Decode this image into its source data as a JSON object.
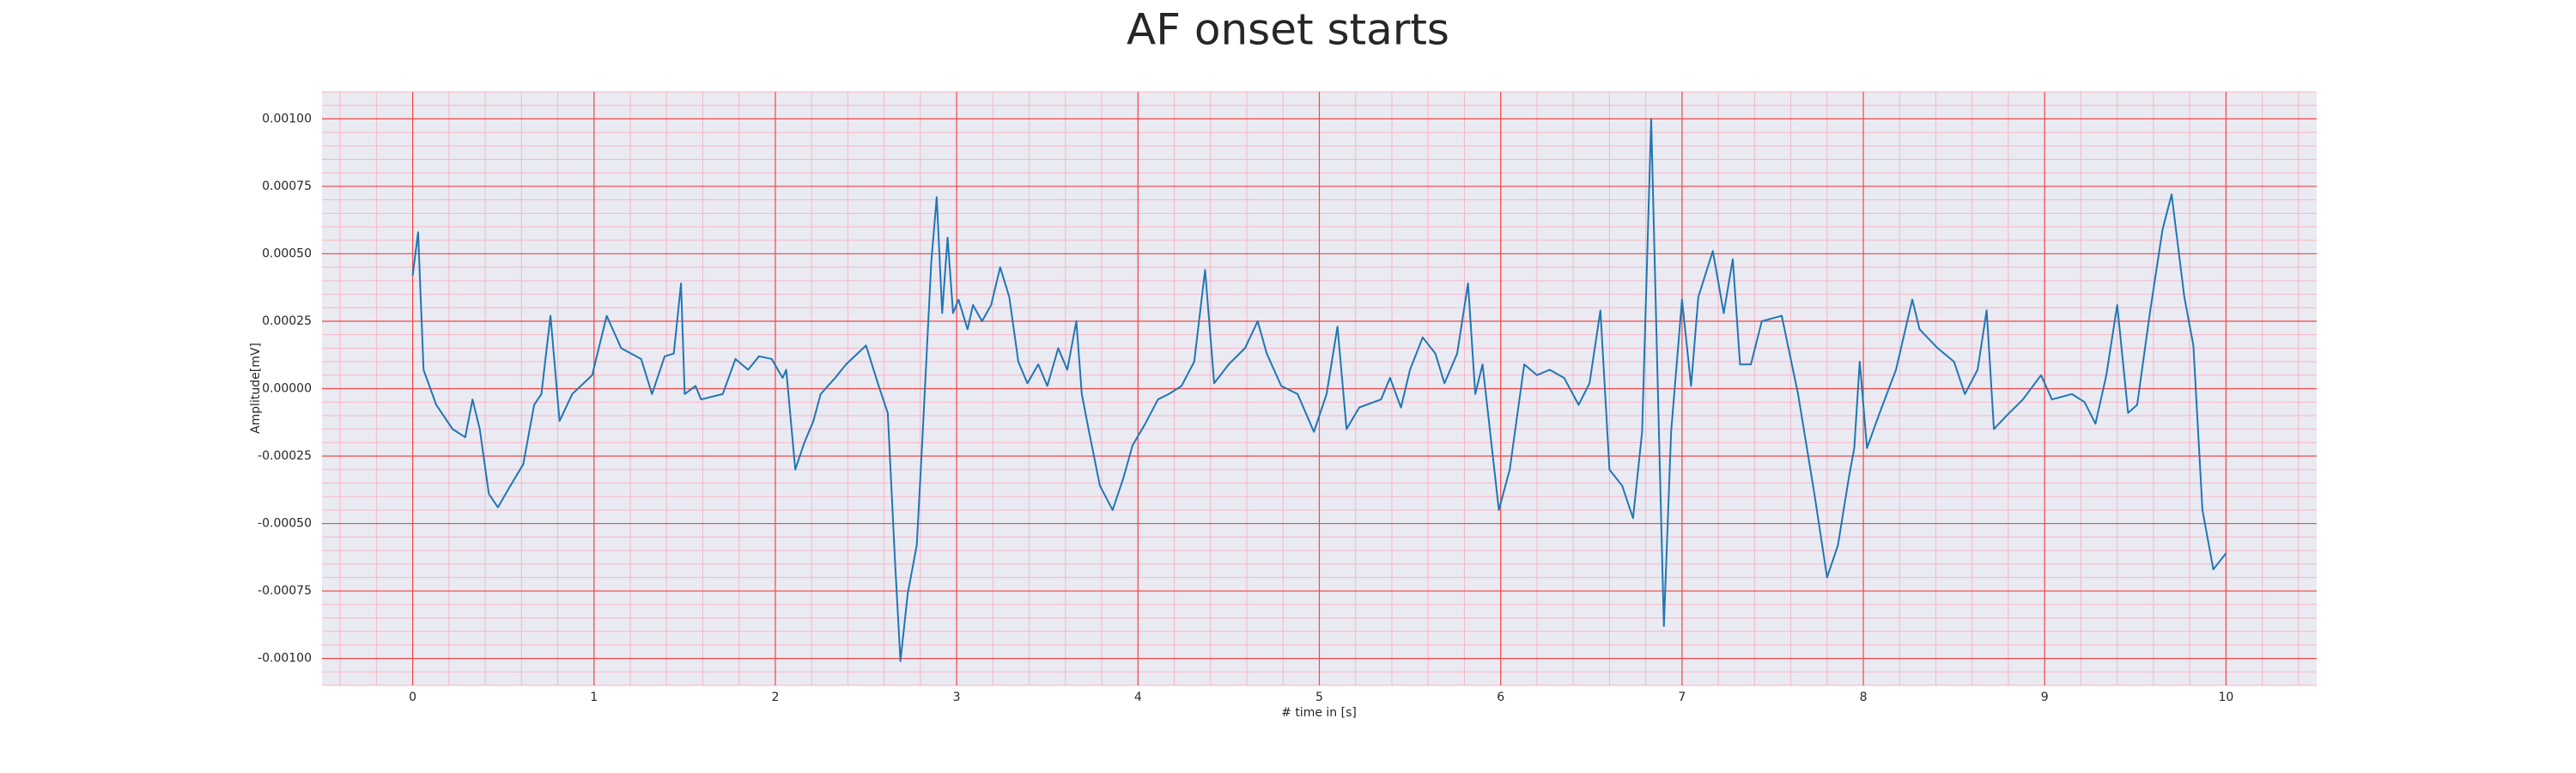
{
  "chart_data": {
    "type": "line",
    "title": "AF onset starts",
    "xlabel": "# time in [s]",
    "ylabel": "Amplitude[mV]",
    "color": "#1f77b4",
    "grid": true,
    "minor_grid": true,
    "xlim": [
      -0.5,
      10.5
    ],
    "xticks": [
      0,
      1,
      2,
      3,
      4,
      5,
      6,
      7,
      8,
      9,
      10
    ],
    "ylim": [
      -0.0011,
      0.0011
    ],
    "yticks": [
      {
        "value": -0.001,
        "label": "-0.00100"
      },
      {
        "value": -0.00075,
        "label": "-0.00075"
      },
      {
        "value": -0.0005,
        "label": "-0.00050"
      },
      {
        "value": -0.00025,
        "label": "-0.00025"
      },
      {
        "value": 0,
        "label": "0.00000"
      },
      {
        "value": 0.00025,
        "label": "0.00025"
      },
      {
        "value": 0.0005,
        "label": "0.00050"
      },
      {
        "value": 0.00075,
        "label": "0.00075"
      },
      {
        "value": 0.001,
        "label": "0.00100"
      }
    ],
    "x": [
      0,
      0.03,
      0.06,
      0.13,
      0.22,
      0.29,
      0.33,
      0.37,
      0.42,
      0.47,
      0.53,
      0.61,
      0.67,
      0.71,
      0.76,
      0.81,
      0.88,
      0.99,
      1.07,
      1.15,
      1.26,
      1.32,
      1.39,
      1.44,
      1.48,
      1.5,
      1.56,
      1.59,
      1.71,
      1.78,
      1.85,
      1.91,
      1.98,
      2.04,
      2.06,
      2.11,
      2.16,
      2.21,
      2.25,
      2.33,
      2.39,
      2.5,
      2.57,
      2.62,
      2.66,
      2.69,
      2.73,
      2.78,
      2.81,
      2.86,
      2.89,
      2.92,
      2.95,
      2.98,
      3.01,
      3.06,
      3.09,
      3.14,
      3.19,
      3.24,
      3.29,
      3.34,
      3.39,
      3.45,
      3.5,
      3.56,
      3.61,
      3.66,
      3.69,
      3.73,
      3.79,
      3.86,
      3.92,
      3.97,
      4.04,
      4.11,
      4.17,
      4.24,
      4.31,
      4.37,
      4.42,
      4.5,
      4.59,
      4.66,
      4.71,
      4.79,
      4.88,
      4.97,
      5.04,
      5.1,
      5.15,
      5.22,
      5.34,
      5.39,
      5.45,
      5.5,
      5.57,
      5.64,
      5.69,
      5.76,
      5.82,
      5.86,
      5.9,
      5.95,
      5.99,
      6.05,
      6.13,
      6.2,
      6.27,
      6.35,
      6.43,
      6.49,
      6.55,
      6.6,
      6.67,
      6.73,
      6.78,
      6.83,
      6.87,
      6.9,
      6.94,
      7.0,
      7.05,
      7.09,
      7.17,
      7.23,
      7.28,
      7.32,
      7.38,
      7.44,
      7.55,
      7.64,
      7.73,
      7.8,
      7.86,
      7.92,
      7.95,
      7.98,
      8.02,
      8.09,
      8.18,
      8.27,
      8.31,
      8.41,
      8.5,
      8.56,
      8.63,
      8.68,
      8.72,
      8.79,
      8.88,
      8.98,
      9.04,
      9.15,
      9.22,
      9.28,
      9.34,
      9.4,
      9.46,
      9.51,
      9.58,
      9.65,
      9.7,
      9.77,
      9.82,
      9.87,
      9.93,
      10.0
    ],
    "values": [
      0.00042,
      0.00058,
      7e-05,
      -6e-05,
      -0.00015,
      -0.00018,
      -4e-05,
      -0.00015,
      -0.00039,
      -0.00044,
      -0.00037,
      -0.00028,
      -6e-05,
      -2e-05,
      0.00027,
      -0.00012,
      -2e-05,
      5e-05,
      0.00027,
      0.00015,
      0.00011,
      -2e-05,
      0.00012,
      0.00013,
      0.00039,
      -2e-05,
      1e-05,
      -4e-05,
      -2e-05,
      0.00011,
      7e-05,
      0.00012,
      0.00011,
      4e-05,
      7e-05,
      -0.0003,
      -0.0002,
      -0.00012,
      -2e-05,
      4e-05,
      9e-05,
      0.00016,
      1e-05,
      -9e-05,
      -0.00064,
      -0.00101,
      -0.00076,
      -0.00058,
      -0.0002,
      0.00047,
      0.00071,
      0.00028,
      0.00056,
      0.00028,
      0.00033,
      0.00022,
      0.00031,
      0.00025,
      0.00031,
      0.00045,
      0.00034,
      0.0001,
      2e-05,
      9e-05,
      1e-05,
      0.00015,
      7e-05,
      0.00025,
      -2e-05,
      -0.00016,
      -0.00036,
      -0.00045,
      -0.00033,
      -0.00021,
      -0.00013,
      -4e-05,
      -2e-05,
      1e-05,
      0.0001,
      0.00044,
      2e-05,
      9e-05,
      0.00015,
      0.00025,
      0.00013,
      1e-05,
      -2e-05,
      -0.00016,
      -2e-05,
      0.00023,
      -0.00015,
      -7e-05,
      -4e-05,
      4e-05,
      -7e-05,
      7e-05,
      0.00019,
      0.00013,
      2e-05,
      0.00013,
      0.00039,
      -2e-05,
      9e-05,
      -0.00021,
      -0.00045,
      -0.0003,
      9e-05,
      5e-05,
      7e-05,
      4e-05,
      -6e-05,
      2e-05,
      0.00029,
      -0.0003,
      -0.00036,
      -0.00048,
      -0.00016,
      0.001,
      -9e-05,
      -0.00088,
      -0.00016,
      0.00033,
      1e-05,
      0.00034,
      0.00051,
      0.00028,
      0.00048,
      9e-05,
      9e-05,
      0.00025,
      0.00027,
      -2e-05,
      -0.00039,
      -0.0007,
      -0.00058,
      -0.00033,
      -0.00022,
      0.0001,
      -0.00022,
      -9e-05,
      7e-05,
      0.00033,
      0.00022,
      0.00015,
      0.0001,
      -2e-05,
      7e-05,
      0.00029,
      -0.00015,
      -0.0001,
      -4e-05,
      5e-05,
      -4e-05,
      -2e-05,
      -5e-05,
      -0.00013,
      5e-05,
      0.00031,
      -9e-05,
      -6e-05,
      0.00028,
      0.00059,
      0.00072,
      0.00034,
      0.00016,
      -0.00045,
      -0.00067,
      -0.00061
    ]
  }
}
